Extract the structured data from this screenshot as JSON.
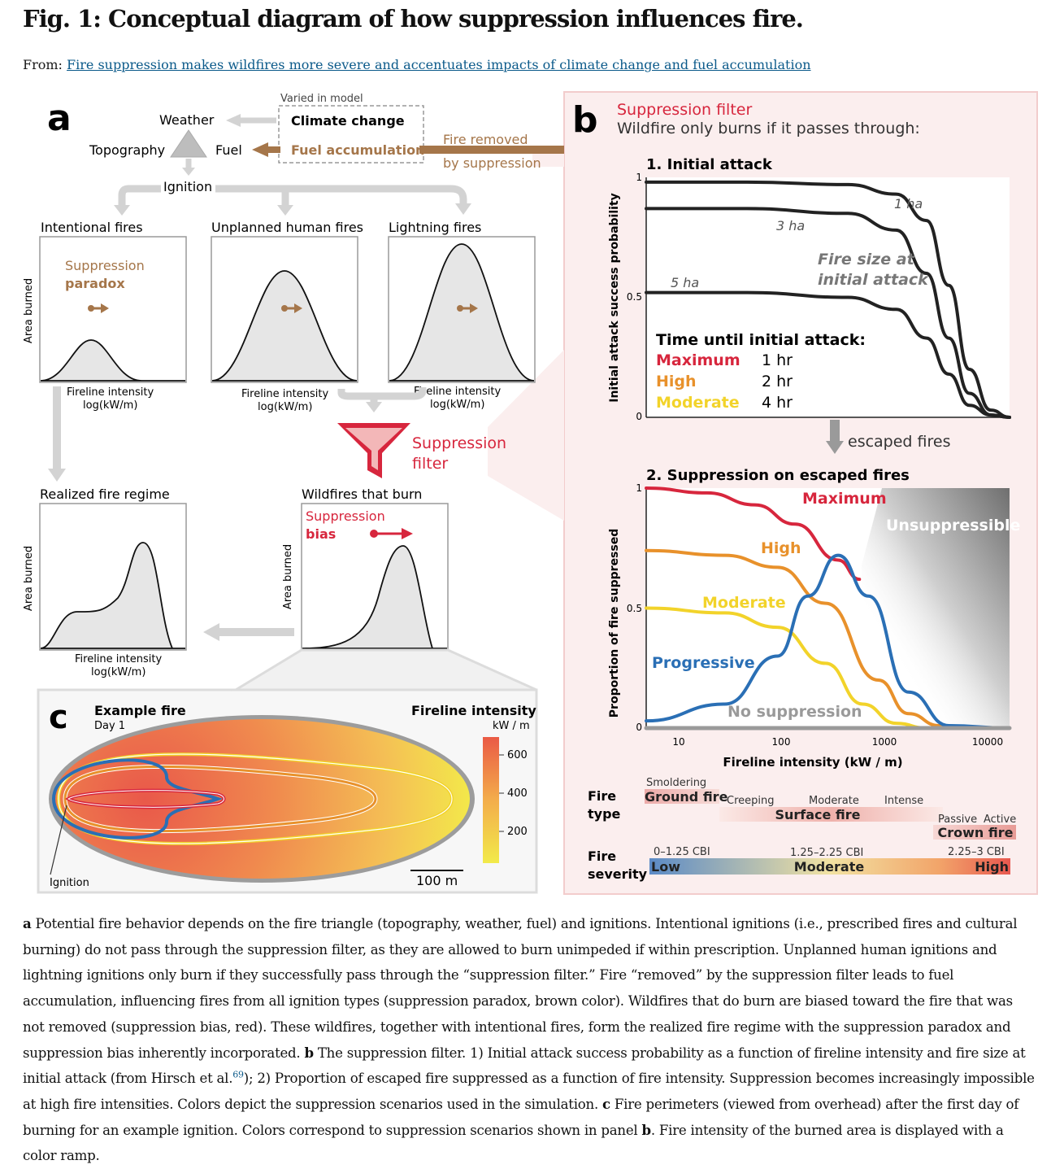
{
  "header": {
    "title": "Fig. 1: Conceptual diagram of how suppression influences fire.",
    "from_label": "From:",
    "article_link": "Fire suppression makes wildfires more severe and accentuates impacts of climate change and fuel accumulation"
  },
  "panel_a": {
    "letter": "a",
    "varied_label": "Varied in model",
    "climate_change": "Climate change",
    "fuel_accumulation": "Fuel accumulation",
    "weather": "Weather",
    "topography": "Topography",
    "fuel": "Fuel",
    "ignition": "Ignition",
    "fire_removed_1": "Fire removed",
    "fire_removed_2": "by suppression",
    "boxes": {
      "intentional": "Intentional fires",
      "unplanned": "Unplanned human fires",
      "lightning": "Lightning fires",
      "realized": "Realized fire regime",
      "wildfires": "Wildfires that burn"
    },
    "paradox_1": "Suppression",
    "paradox_2": "paradox",
    "bias_1": "Suppression",
    "bias_2": "bias",
    "x_label_1": "Fireline intensity",
    "x_label_2": "log(kW/m)",
    "y_label": "Area burned",
    "filter_1": "Suppression",
    "filter_2": "filter"
  },
  "panel_b": {
    "letter": "b",
    "title": "Suppression filter",
    "subtitle": "Wildfire only burns if it passes through:",
    "plot1_title": "1. Initial attack",
    "plot1_ylabel": "Initial attack success probability",
    "plot1_yticks": [
      "1",
      "0.5",
      "0"
    ],
    "size_labels": [
      "1 ha",
      "3 ha",
      "5 ha"
    ],
    "size_note_1": "Fire size at",
    "size_note_2": "initial attack",
    "time_header": "Time until initial attack:",
    "time_rows": [
      {
        "level": "Maximum",
        "time": "1 hr",
        "color": "#d7263d"
      },
      {
        "level": "High",
        "time": "2 hr",
        "color": "#e8912b"
      },
      {
        "level": "Moderate",
        "time": "4 hr",
        "color": "#f2d32a"
      }
    ],
    "escaped": "escaped fires",
    "plot2_title": "2. Suppression on escaped fires",
    "plot2_ylabel": "Proportion of fire suppressed",
    "plot2_yticks": [
      "1",
      "0.5",
      "0"
    ],
    "plot2_xticks": [
      "10",
      "100",
      "1000",
      "10000"
    ],
    "plot2_xlabel": "Fireline intensity (kW / m)",
    "unsuppressible": "Unsuppressible",
    "no_suppression": "No suppression",
    "series_labels": {
      "maximum": "Maximum",
      "high": "High",
      "moderate": "Moderate",
      "progressive": "Progressive"
    },
    "fire_type_1": "Fire",
    "fire_type_2": "type",
    "smoldering": "Smoldering",
    "ground_fire": "Ground fire",
    "creeping": "Creeping",
    "moderate_ft": "Moderate",
    "intense": "Intense",
    "surface_fire": "Surface fire",
    "passive": "Passive",
    "active": "Active",
    "crown_fire": "Crown fire",
    "severity_1": "Fire",
    "severity_2": "severity",
    "cbi_low": "0–1.25 CBI",
    "cbi_mod": "1.25–2.25 CBI",
    "cbi_high": "2.25–3 CBI",
    "sev_low": "Low",
    "sev_mod": "Moderate",
    "sev_high": "High"
  },
  "panel_c": {
    "letter": "c",
    "title": "Example fire",
    "day": "Day 1",
    "colorbar_title": "Fireline intensity",
    "colorbar_unit": "kW / m",
    "colorbar_ticks": [
      "600",
      "400",
      "200"
    ],
    "ignition": "Ignition",
    "scale": "100 m"
  },
  "colors": {
    "maximum": "#d7263d",
    "high": "#e8912b",
    "moderate": "#f2d32a",
    "progressive": "#2a6fb5",
    "brown": "#a5764a",
    "red": "#d7263d"
  },
  "chart_data": [
    {
      "type": "line",
      "title": "1. Initial attack",
      "ylabel": "Initial attack success probability",
      "ylim": [
        0,
        1
      ],
      "x_scale": "log",
      "series": [
        {
          "name": "1 ha",
          "x": [
            5,
            50,
            500,
            1500,
            3000,
            5000,
            8000,
            13000,
            20000
          ],
          "values": [
            0.98,
            0.98,
            0.97,
            0.93,
            0.82,
            0.55,
            0.2,
            0.03,
            0
          ]
        },
        {
          "name": "3 ha",
          "x": [
            5,
            50,
            500,
            1500,
            3000,
            5000,
            8000,
            13000,
            20000
          ],
          "values": [
            0.87,
            0.87,
            0.85,
            0.78,
            0.6,
            0.33,
            0.1,
            0.01,
            0
          ]
        },
        {
          "name": "5 ha",
          "x": [
            5,
            50,
            500,
            1500,
            3000,
            5000,
            8000,
            13000,
            20000
          ],
          "values": [
            0.52,
            0.52,
            0.5,
            0.45,
            0.33,
            0.18,
            0.05,
            0.01,
            0
          ]
        }
      ]
    },
    {
      "type": "line",
      "title": "2. Suppression on escaped fires",
      "xlabel": "Fireline intensity (kW / m)",
      "ylabel": "Proportion of fire suppressed",
      "ylim": [
        0,
        1
      ],
      "x_scale": "log",
      "xlim": [
        5,
        20000
      ],
      "series": [
        {
          "name": "Maximum",
          "x": [
            5,
            20,
            60,
            150,
            400,
            650
          ],
          "values": [
            1.0,
            0.98,
            0.93,
            0.85,
            0.7,
            0.62
          ]
        },
        {
          "name": "High",
          "x": [
            5,
            30,
            100,
            300,
            1000,
            2000,
            4000,
            10000
          ],
          "values": [
            0.74,
            0.72,
            0.67,
            0.52,
            0.2,
            0.06,
            0.01,
            0
          ]
        },
        {
          "name": "Moderate",
          "x": [
            5,
            30,
            100,
            300,
            700,
            1500,
            3000,
            10000
          ],
          "values": [
            0.5,
            0.48,
            0.42,
            0.27,
            0.1,
            0.02,
            0,
            0
          ]
        },
        {
          "name": "Progressive",
          "x": [
            5,
            30,
            100,
            200,
            400,
            800,
            2000,
            5000,
            20000
          ],
          "values": [
            0.03,
            0.1,
            0.3,
            0.55,
            0.72,
            0.55,
            0.15,
            0.01,
            0
          ]
        },
        {
          "name": "No suppression",
          "x": [
            5,
            20000
          ],
          "values": [
            0,
            0
          ]
        }
      ]
    }
  ]
}
